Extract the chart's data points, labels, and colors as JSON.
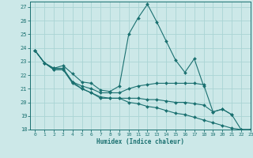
{
  "xlabel": "Humidex (Indice chaleur)",
  "ylabel": "",
  "bg_color": "#cce8e8",
  "grid_color": "#aad4d4",
  "line_color": "#1a7070",
  "xlim": [
    -0.5,
    23
  ],
  "ylim": [
    18,
    27.4
  ],
  "xticks": [
    0,
    1,
    2,
    3,
    4,
    5,
    6,
    7,
    8,
    9,
    10,
    11,
    12,
    13,
    14,
    15,
    16,
    17,
    18,
    19,
    20,
    21,
    22,
    23
  ],
  "yticks": [
    18,
    19,
    20,
    21,
    22,
    23,
    24,
    25,
    26,
    27
  ],
  "series": [
    {
      "x": [
        0,
        1,
        2,
        3,
        4,
        5,
        6,
        7,
        8,
        9,
        10,
        11,
        12,
        13,
        14,
        15,
        16,
        17,
        18
      ],
      "y": [
        23.8,
        22.9,
        22.5,
        22.7,
        22.1,
        21.5,
        21.4,
        20.9,
        20.8,
        21.2,
        25.0,
        26.2,
        27.2,
        25.9,
        24.5,
        23.1,
        22.2,
        23.2,
        21.2
      ]
    },
    {
      "x": [
        0,
        1,
        2,
        3,
        4,
        5,
        6,
        7,
        8,
        9,
        10,
        11,
        12,
        13,
        14,
        15,
        16,
        17,
        18,
        19,
        20,
        21
      ],
      "y": [
        23.8,
        22.9,
        22.5,
        22.5,
        21.5,
        21.2,
        21.0,
        20.7,
        20.7,
        20.7,
        21.0,
        21.2,
        21.3,
        21.4,
        21.4,
        21.4,
        21.4,
        21.4,
        21.3,
        19.3,
        19.5,
        19.1
      ]
    },
    {
      "x": [
        0,
        1,
        2,
        3,
        4,
        5,
        6,
        7,
        8,
        9,
        10,
        11,
        12,
        13,
        14,
        15,
        16,
        17,
        18,
        19,
        20,
        21,
        22,
        23
      ],
      "y": [
        23.8,
        22.9,
        22.4,
        22.4,
        21.4,
        21.0,
        20.7,
        20.4,
        20.3,
        20.3,
        20.3,
        20.3,
        20.2,
        20.2,
        20.1,
        20.0,
        20.0,
        19.9,
        19.8,
        19.3,
        19.5,
        19.1,
        18.0,
        18.0
      ]
    },
    {
      "x": [
        0,
        1,
        2,
        3,
        4,
        5,
        6,
        7,
        8,
        9,
        10,
        11,
        12,
        13,
        14,
        15,
        16,
        17,
        18,
        19,
        20,
        21,
        22,
        23
      ],
      "y": [
        23.8,
        22.9,
        22.4,
        22.4,
        21.5,
        21.0,
        20.7,
        20.3,
        20.3,
        20.3,
        20.0,
        19.9,
        19.7,
        19.6,
        19.4,
        19.2,
        19.1,
        18.9,
        18.7,
        18.5,
        18.3,
        18.1,
        18.0,
        18.0
      ]
    }
  ]
}
